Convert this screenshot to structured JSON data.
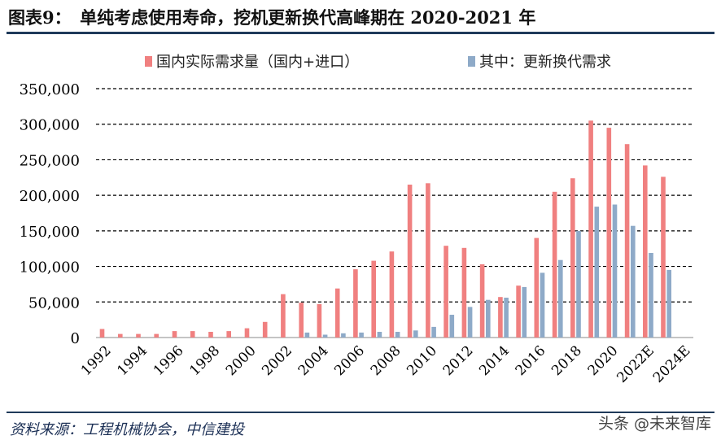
{
  "header": {
    "title": "图表9：　单纯考虑使用寿命，挖机更新换代高峰期在 2020-2021 年"
  },
  "footer": {
    "source": "资料来源：工程机械协会，中信建投",
    "watermark": "头条 @未来智库"
  },
  "colors": {
    "series_domestic": "#f08080",
    "series_replacement": "#8eaac8",
    "rule": "#1f3a5a"
  },
  "chart_data": {
    "type": "bar",
    "categories": [
      "1992",
      "1993",
      "1994",
      "1995",
      "1996",
      "1997",
      "1998",
      "1999",
      "2000",
      "2001",
      "2002",
      "2003",
      "2004",
      "2005",
      "2006",
      "2007",
      "2008",
      "2009",
      "2010",
      "2011",
      "2012",
      "2013",
      "2014",
      "2015",
      "2016",
      "2017",
      "2018",
      "2019",
      "2020",
      "2021",
      "2022E",
      "2023E",
      "2024E"
    ],
    "tick_labels": [
      "1992",
      "1994",
      "1996",
      "1998",
      "2000",
      "2002",
      "2004",
      "2006",
      "2008",
      "2010",
      "2012",
      "2014",
      "2016",
      "2018",
      "2020",
      "2022E",
      "2024E"
    ],
    "series": [
      {
        "name": "国内实际需求量（国内+进口）",
        "values": [
          12000,
          5000,
          5000,
          5000,
          9000,
          9000,
          8000,
          9000,
          13000,
          22000,
          61000,
          49000,
          47000,
          69000,
          96000,
          108000,
          121000,
          215000,
          217000,
          129000,
          126000,
          103000,
          57000,
          73000,
          140000,
          205000,
          224000,
          305000,
          295000,
          272000,
          242000,
          226000,
          null
        ]
      },
      {
        "name": "其中：更新换代需求",
        "values": [
          0,
          0,
          0,
          0,
          0,
          0,
          0,
          0,
          0,
          0,
          0,
          7000,
          4000,
          6000,
          7000,
          8000,
          8000,
          10000,
          15000,
          32000,
          43000,
          53000,
          56000,
          71000,
          91000,
          109000,
          150000,
          184000,
          187000,
          157000,
          119000,
          95000,
          null
        ]
      }
    ],
    "yticks": [
      "0",
      "50,000",
      "100,000",
      "150,000",
      "200,000",
      "250,000",
      "300,000",
      "350,000"
    ],
    "ylim": [
      0,
      350000
    ],
    "grid": true,
    "legend": "top"
  }
}
